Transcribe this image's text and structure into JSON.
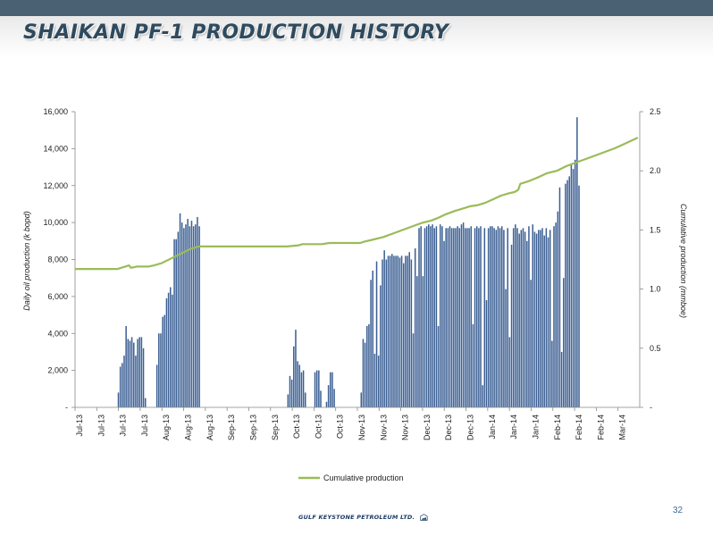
{
  "slide": {
    "title": "SHAIKAN PF-1 PRODUCTION HISTORY",
    "page_number": "32",
    "logo_text": "GULF KEYSTONE PETROLEUM LTD."
  },
  "colors": {
    "bars": "#3b5f93",
    "cumulative_line": "#9bbb59",
    "header_band": "#4a6174",
    "title_text": "#2f4a5e",
    "page_number": "#3d6b96"
  },
  "chart_data": {
    "type": "bar+line",
    "y_left_label": "Daily oil production (k bopd)",
    "y_right_label": "Cumulative production (mmboe)",
    "y_left_range": [
      0,
      16000
    ],
    "y_right_range": [
      0,
      2.5
    ],
    "y_left_ticks": [
      "-",
      "2,000",
      "4,000",
      "6,000",
      "8,000",
      "10,000",
      "12,000",
      "14,000",
      "16,000"
    ],
    "y_right_ticks": [
      "-",
      "0.5",
      "1.0",
      "1.5",
      "2.0",
      "2.5"
    ],
    "x_tick_labels": [
      "Jul-13",
      "Jul-13",
      "Jul-13",
      "Jul-13",
      "Aug-13",
      "Aug-13",
      "Aug-13",
      "Sep-13",
      "Sep-13",
      "Sep-13",
      "Oct-13",
      "Oct-13",
      "Oct-13",
      "Nov-13",
      "Nov-13",
      "Nov-13",
      "Dec-13",
      "Dec-13",
      "Dec-13",
      "Jan-14",
      "Jan-14",
      "Jan-14",
      "Feb-14",
      "Feb-14",
      "Feb-14",
      "Mar-14"
    ],
    "legend": {
      "position": "bottom",
      "label": "Cumulative production"
    },
    "grid": false,
    "daily_production_segments": [
      {
        "start_day": 22,
        "values": [
          800,
          2200,
          2400,
          2800,
          4400,
          3700,
          3600,
          3800,
          3500,
          2800,
          3700,
          3800,
          3800,
          3200,
          500
        ]
      },
      {
        "start_day": 42,
        "values": [
          2300,
          4000,
          4000,
          4900,
          5000,
          5900,
          6200,
          6500,
          6100,
          9100,
          9100,
          9500,
          10500,
          10000,
          9700,
          9900,
          10200,
          9800,
          10100,
          9800,
          9900,
          10300,
          9800
        ]
      },
      {
        "start_day": 110,
        "values": [
          700,
          1700,
          1500,
          3300,
          4200,
          2500,
          2300,
          1900,
          2000,
          800
        ]
      },
      {
        "start_day": 124,
        "values": [
          1900,
          2000,
          2000,
          900
        ]
      },
      {
        "start_day": 130,
        "values": [
          300,
          1200,
          1900,
          1900,
          1000
        ]
      },
      {
        "start_day": 148,
        "values": [
          800,
          3700,
          3500,
          4400,
          4500,
          6900,
          7400,
          2900,
          7900,
          2800,
          6600,
          8000,
          8500,
          8000,
          8200,
          8200,
          8300,
          8200,
          8200,
          8200,
          8100,
          8200,
          7800,
          8200,
          8200,
          8400,
          8000,
          4000,
          8600,
          7100,
          9700,
          9800,
          7100,
          9700,
          9800,
          9900,
          9800,
          9900,
          9700,
          9800,
          4400,
          9900,
          9800,
          9000,
          9700,
          9700,
          9800,
          9700,
          9700,
          9700,
          9800,
          9700,
          9900,
          10000,
          9700,
          9700,
          9700,
          9800,
          4500,
          9700,
          9800,
          9700,
          9800,
          1200,
          9700,
          5800,
          9700,
          9800,
          9800,
          9700,
          9600,
          9800,
          9700,
          9800,
          9600,
          6400,
          9700,
          3800,
          8800,
          9700,
          9900,
          9700,
          9400,
          9600,
          9700,
          9500,
          9000,
          9800,
          6900,
          9900,
          9500,
          9400,
          9600,
          9600,
          9700,
          9300,
          9700,
          9200,
          9600,
          3600,
          9800,
          10000,
          10600,
          11900,
          3000,
          7000,
          12100,
          12300,
          12500,
          13100,
          12900,
          13400,
          15700,
          12000
        ]
      }
    ],
    "cumulative_series": {
      "name": "Cumulative production",
      "points": [
        [
          0,
          1.17
        ],
        [
          22,
          1.17
        ],
        [
          26,
          1.19
        ],
        [
          28,
          1.2
        ],
        [
          29,
          1.18
        ],
        [
          32,
          1.19
        ],
        [
          38,
          1.19
        ],
        [
          41,
          1.2
        ],
        [
          45,
          1.22
        ],
        [
          50,
          1.26
        ],
        [
          55,
          1.3
        ],
        [
          60,
          1.34
        ],
        [
          64,
          1.36
        ],
        [
          110,
          1.36
        ],
        [
          116,
          1.37
        ],
        [
          118,
          1.38
        ],
        [
          128,
          1.38
        ],
        [
          132,
          1.39
        ],
        [
          136,
          1.39
        ],
        [
          148,
          1.39
        ],
        [
          150,
          1.4
        ],
        [
          155,
          1.42
        ],
        [
          160,
          1.44
        ],
        [
          165,
          1.47
        ],
        [
          170,
          1.5
        ],
        [
          175,
          1.53
        ],
        [
          180,
          1.56
        ],
        [
          185,
          1.58
        ],
        [
          188,
          1.6
        ],
        [
          192,
          1.63
        ],
        [
          197,
          1.66
        ],
        [
          201,
          1.68
        ],
        [
          205,
          1.7
        ],
        [
          209,
          1.71
        ],
        [
          213,
          1.73
        ],
        [
          217,
          1.76
        ],
        [
          221,
          1.79
        ],
        [
          225,
          1.81
        ],
        [
          228,
          1.82
        ],
        [
          230,
          1.84
        ],
        [
          231,
          1.89
        ],
        [
          235,
          1.91
        ],
        [
          238,
          1.93
        ],
        [
          241,
          1.95
        ],
        [
          245,
          1.98
        ],
        [
          250,
          2.0
        ],
        [
          255,
          2.04
        ],
        [
          260,
          2.07
        ],
        [
          265,
          2.1
        ],
        [
          270,
          2.13
        ],
        [
          275,
          2.16
        ],
        [
          280,
          2.19
        ],
        [
          284,
          2.22
        ],
        [
          288,
          2.25
        ],
        [
          292,
          2.28
        ]
      ]
    }
  }
}
